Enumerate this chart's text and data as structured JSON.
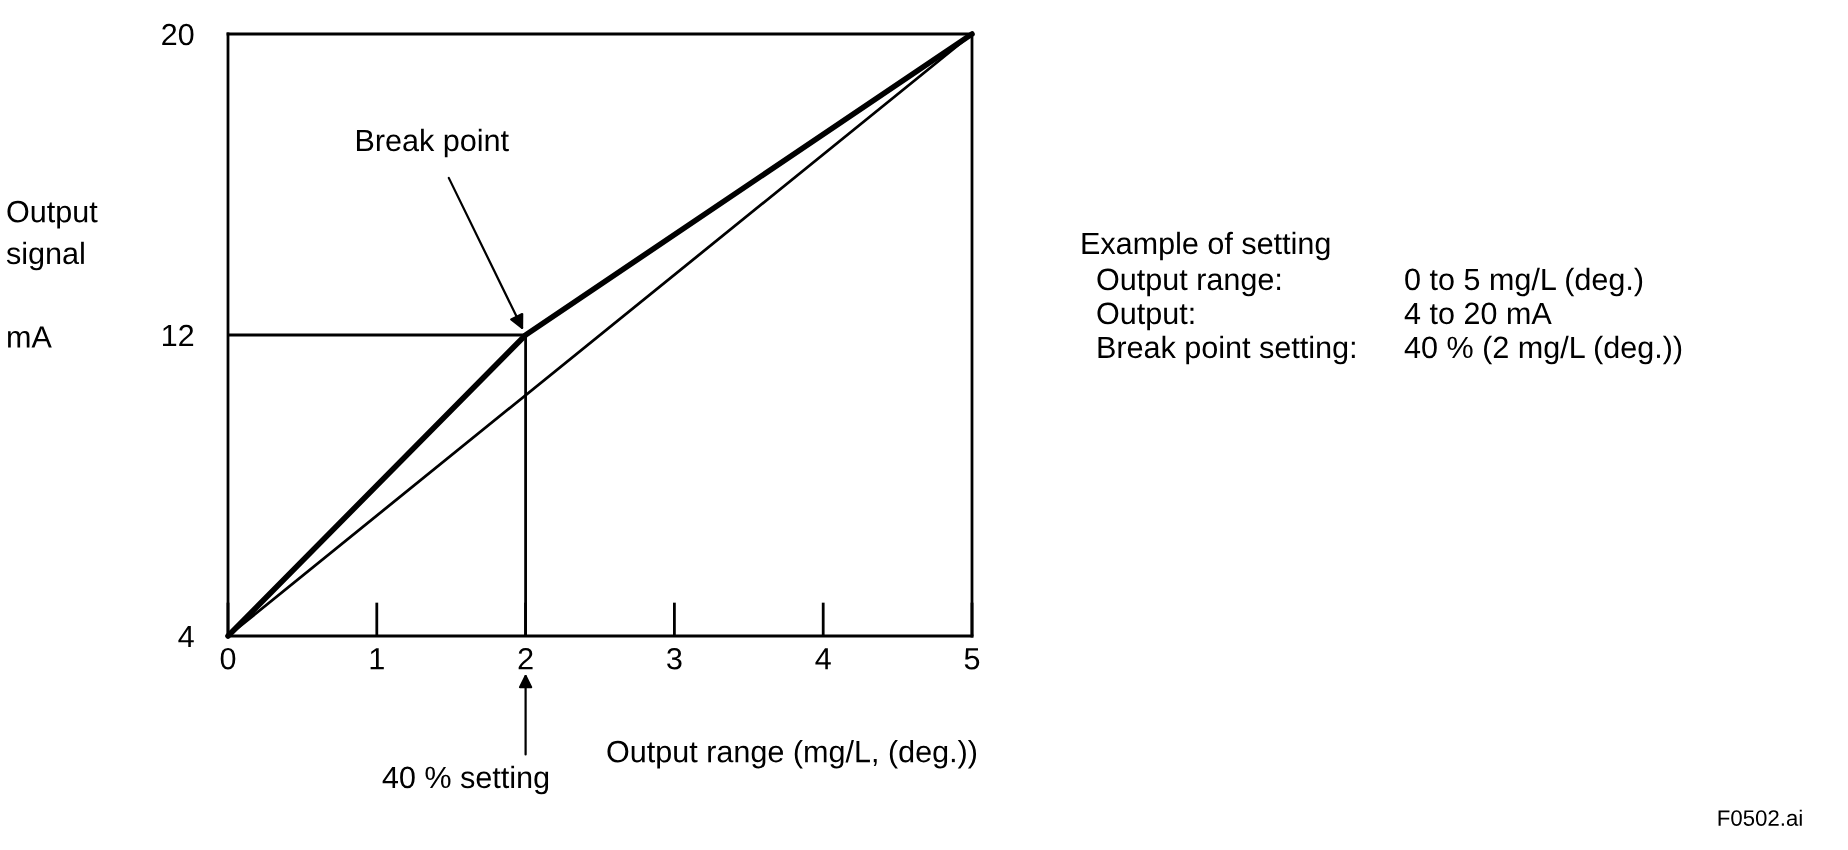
{
  "chart_data": {
    "type": "line",
    "xlabel": "Output range (mg/L, (deg.))",
    "ylabel": "Output\nsignal\n\nmA",
    "xlim": [
      0,
      5
    ],
    "ylim": [
      4,
      20
    ],
    "xticks": [
      0,
      1,
      2,
      3,
      4,
      5
    ],
    "yticks": [
      4,
      12,
      20
    ],
    "grid": false,
    "legend": false,
    "marker": "none",
    "line_style": "solid",
    "series": [
      {
        "color": "#000000",
        "x": [
          0,
          2,
          5
        ],
        "values": [
          4,
          12,
          20
        ]
      },
      {
        "color": "#000000",
        "x": [
          0,
          5
        ],
        "values": [
          4,
          20
        ]
      }
    ],
    "ref_lines": [
      {
        "axis": "y",
        "value": 12,
        "color": "#000000"
      },
      {
        "axis": "x",
        "value": 2,
        "color": "#000000"
      }
    ],
    "annotations": [
      {
        "text": "Break point",
        "x": 2,
        "y": 12
      },
      "40 % setting",
      "Example of setting",
      "Output range:",
      "0 to 5 mg/L (deg.)",
      "Output:",
      "4 to 20 mA",
      "Break point setting:",
      "40 % (2 mg/L (deg.))",
      "F0502.ai"
    ]
  }
}
